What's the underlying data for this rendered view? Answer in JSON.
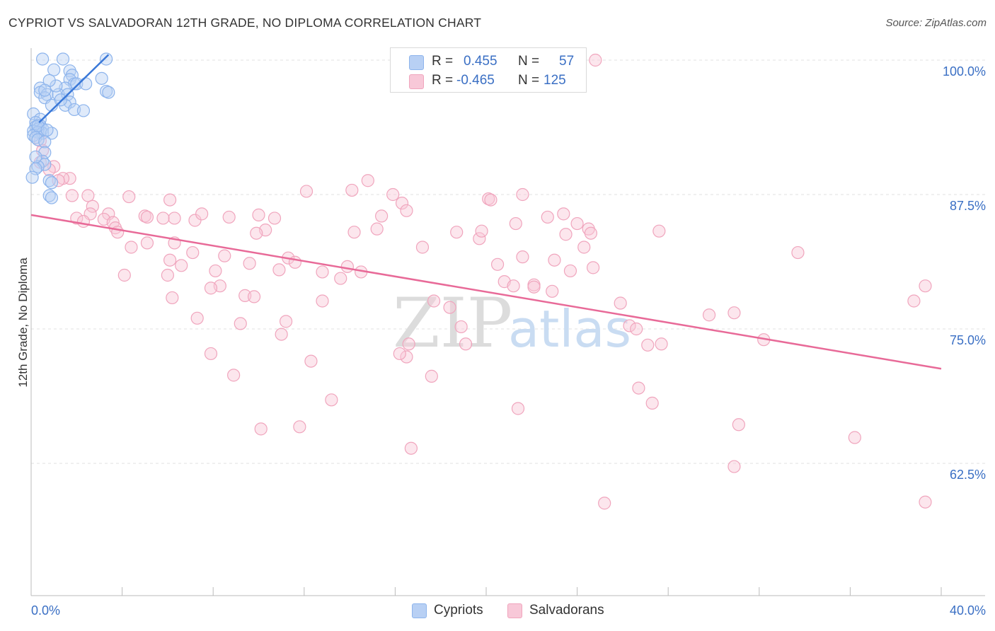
{
  "title": "CYPRIOT VS SALVADORAN 12TH GRADE, NO DIPLOMA CORRELATION CHART",
  "source": "Source: ZipAtlas.com",
  "watermark": {
    "zip": "ZIP",
    "atlas": "atlas"
  },
  "colors": {
    "blue": "#8db4ec",
    "blue_line": "#3a78d8",
    "blue_fill": "#b8d0f4",
    "pink": "#f0a5bd",
    "pink_line": "#e86a98",
    "pink_fill": "#f8c8d8",
    "tick_blue": "#3a6fc4",
    "grid": "#e2e2e2"
  },
  "legend": {
    "rows": [
      {
        "r_label": "R =",
        "r_value": "0.455",
        "n_label": "N =",
        "n_value": "57"
      },
      {
        "r_label": "R =",
        "r_value": "-0.465",
        "n_label": "N =",
        "n_value": "125"
      }
    ]
  },
  "bottom_legend": [
    "Cypriots",
    "Salvadorans"
  ],
  "chart_data": {
    "type": "scatter",
    "title": "CYPRIOT VS SALVADORAN 12TH GRADE, NO DIPLOMA CORRELATION CHART",
    "xlabel": "",
    "ylabel": "12th Grade, No Diploma",
    "xlim": [
      0,
      40
    ],
    "ylim": [
      50,
      100.5
    ],
    "x_tick_labels": [
      "0.0%",
      "40.0%"
    ],
    "y_ticks": [
      62.5,
      75.0,
      87.5,
      100.0
    ],
    "y_tick_labels": [
      "62.5%",
      "75.0%",
      "87.5%",
      "100.0%"
    ],
    "legend_position": "top-center",
    "series": [
      {
        "name": "Cypriots",
        "r": 0.455,
        "n": 57,
        "trend": {
          "x": [
            0.35,
            3.4
          ],
          "y": [
            94.2,
            100.5
          ]
        },
        "points": [
          [
            0.5,
            100.1
          ],
          [
            1.0,
            99.1
          ],
          [
            1.4,
            100.1
          ],
          [
            3.3,
            100.1
          ],
          [
            1.7,
            99.0
          ],
          [
            1.8,
            98.6
          ],
          [
            3.1,
            98.3
          ],
          [
            1.7,
            98.2
          ],
          [
            1.9,
            97.8
          ],
          [
            2.0,
            97.8
          ],
          [
            2.4,
            97.8
          ],
          [
            1.5,
            97.4
          ],
          [
            0.4,
            97.4
          ],
          [
            0.4,
            97.0
          ],
          [
            3.3,
            97.1
          ],
          [
            3.4,
            97.0
          ],
          [
            0.7,
            96.8
          ],
          [
            1.2,
            96.8
          ],
          [
            1.6,
            96.8
          ],
          [
            0.6,
            96.5
          ],
          [
            1.7,
            96.1
          ],
          [
            0.9,
            95.8
          ],
          [
            1.5,
            95.8
          ],
          [
            1.9,
            95.4
          ],
          [
            2.3,
            95.3
          ],
          [
            0.1,
            95.0
          ],
          [
            0.4,
            94.5
          ],
          [
            0.2,
            94.2
          ],
          [
            0.4,
            93.9
          ],
          [
            0.2,
            93.8
          ],
          [
            0.3,
            93.6
          ],
          [
            0.5,
            93.6
          ],
          [
            0.1,
            93.4
          ],
          [
            0.3,
            93.3
          ],
          [
            0.5,
            93.2
          ],
          [
            0.9,
            93.2
          ],
          [
            0.1,
            93.0
          ],
          [
            0.2,
            92.8
          ],
          [
            0.3,
            92.6
          ],
          [
            0.6,
            92.4
          ],
          [
            0.6,
            91.4
          ],
          [
            0.5,
            90.6
          ],
          [
            0.6,
            90.3
          ],
          [
            0.3,
            90.1
          ],
          [
            0.2,
            89.9
          ],
          [
            0.05,
            89.1
          ],
          [
            0.8,
            88.8
          ],
          [
            0.9,
            88.6
          ],
          [
            0.8,
            87.4
          ],
          [
            0.9,
            87.2
          ],
          [
            0.3,
            93.9
          ],
          [
            0.7,
            93.5
          ],
          [
            0.2,
            91.0
          ],
          [
            1.1,
            97.6
          ],
          [
            0.8,
            98.1
          ],
          [
            0.6,
            97.2
          ],
          [
            1.3,
            96.3
          ]
        ]
      },
      {
        "name": "Salvadorans",
        "r": -0.465,
        "n": 125,
        "trend": {
          "x": [
            0,
            40
          ],
          "y": [
            85.6,
            71.3
          ]
        },
        "points": [
          [
            24.8,
            100.0
          ],
          [
            0.3,
            93.3
          ],
          [
            0.4,
            92.5
          ],
          [
            0.5,
            91.6
          ],
          [
            0.4,
            90.5
          ],
          [
            1.0,
            90.1
          ],
          [
            0.8,
            89.8
          ],
          [
            1.7,
            89.0
          ],
          [
            1.4,
            89.0
          ],
          [
            1.2,
            88.8
          ],
          [
            1.8,
            87.4
          ],
          [
            2.5,
            87.4
          ],
          [
            4.3,
            87.3
          ],
          [
            2.7,
            86.4
          ],
          [
            3.4,
            85.7
          ],
          [
            2.6,
            85.7
          ],
          [
            5.0,
            85.5
          ],
          [
            5.1,
            85.4
          ],
          [
            6.3,
            85.3
          ],
          [
            5.8,
            85.3
          ],
          [
            3.2,
            85.2
          ],
          [
            2.0,
            85.3
          ],
          [
            2.3,
            85.0
          ],
          [
            3.6,
            84.9
          ],
          [
            3.7,
            84.4
          ],
          [
            3.8,
            84.0
          ],
          [
            4.4,
            82.6
          ],
          [
            5.1,
            83.0
          ],
          [
            6.3,
            83.0
          ],
          [
            7.1,
            82.1
          ],
          [
            6.6,
            80.9
          ],
          [
            6.1,
            81.4
          ],
          [
            4.1,
            80.0
          ],
          [
            6.0,
            80.0
          ],
          [
            7.2,
            85.1
          ],
          [
            6.1,
            87.0
          ],
          [
            8.7,
            85.4
          ],
          [
            7.5,
            85.7
          ],
          [
            8.5,
            81.8
          ],
          [
            8.1,
            80.4
          ],
          [
            9.6,
            81.1
          ],
          [
            8.3,
            79.0
          ],
          [
            7.9,
            78.8
          ],
          [
            9.4,
            78.1
          ],
          [
            9.8,
            78.0
          ],
          [
            6.2,
            77.9
          ],
          [
            7.3,
            76.0
          ],
          [
            9.2,
            75.5
          ],
          [
            11.2,
            75.7
          ],
          [
            11.0,
            74.5
          ],
          [
            7.9,
            72.7
          ],
          [
            8.9,
            70.7
          ],
          [
            10.1,
            65.7
          ],
          [
            11.8,
            65.9
          ],
          [
            12.3,
            72.0
          ],
          [
            13.2,
            68.4
          ],
          [
            12.8,
            80.3
          ],
          [
            12.8,
            77.6
          ],
          [
            11.3,
            81.6
          ],
          [
            10.9,
            80.5
          ],
          [
            11.6,
            81.2
          ],
          [
            10.3,
            84.2
          ],
          [
            10.7,
            85.3
          ],
          [
            10.0,
            85.6
          ],
          [
            9.9,
            83.9
          ],
          [
            12.1,
            87.8
          ],
          [
            14.1,
            87.9
          ],
          [
            14.2,
            84.0
          ],
          [
            14.8,
            88.8
          ],
          [
            13.6,
            79.7
          ],
          [
            13.9,
            80.8
          ],
          [
            14.5,
            80.3
          ],
          [
            15.2,
            84.3
          ],
          [
            15.4,
            85.5
          ],
          [
            15.9,
            87.5
          ],
          [
            16.3,
            86.7
          ],
          [
            16.5,
            86.0
          ],
          [
            17.2,
            82.6
          ],
          [
            17.7,
            77.6
          ],
          [
            18.4,
            77.0
          ],
          [
            18.7,
            84.0
          ],
          [
            19.7,
            83.4
          ],
          [
            19.8,
            84.1
          ],
          [
            18.9,
            75.2
          ],
          [
            19.1,
            73.6
          ],
          [
            17.6,
            70.6
          ],
          [
            16.6,
            73.6
          ],
          [
            16.5,
            72.4
          ],
          [
            16.2,
            72.7
          ],
          [
            16.7,
            63.9
          ],
          [
            20.1,
            87.1
          ],
          [
            20.2,
            87.0
          ],
          [
            20.5,
            81.0
          ],
          [
            20.8,
            79.4
          ],
          [
            21.2,
            79.0
          ],
          [
            21.3,
            84.8
          ],
          [
            21.6,
            87.5
          ],
          [
            21.6,
            81.7
          ],
          [
            22.1,
            79.1
          ],
          [
            22.1,
            78.9
          ],
          [
            22.7,
            85.4
          ],
          [
            22.9,
            78.5
          ],
          [
            21.4,
            67.6
          ],
          [
            23.0,
            81.4
          ],
          [
            23.4,
            85.7
          ],
          [
            23.5,
            83.8
          ],
          [
            23.7,
            80.4
          ],
          [
            24.0,
            84.8
          ],
          [
            24.5,
            84.3
          ],
          [
            24.6,
            83.9
          ],
          [
            24.7,
            80.7
          ],
          [
            24.3,
            82.6
          ],
          [
            25.9,
            77.4
          ],
          [
            26.3,
            75.3
          ],
          [
            26.6,
            75.0
          ],
          [
            26.7,
            69.5
          ],
          [
            27.1,
            73.5
          ],
          [
            27.3,
            68.1
          ],
          [
            27.6,
            84.1
          ],
          [
            27.7,
            73.6
          ],
          [
            29.8,
            76.3
          ],
          [
            30.9,
            76.5
          ],
          [
            30.9,
            62.2
          ],
          [
            31.1,
            66.1
          ],
          [
            32.2,
            74.0
          ],
          [
            33.7,
            82.1
          ],
          [
            36.2,
            64.9
          ],
          [
            38.8,
            77.6
          ],
          [
            39.3,
            79.0
          ],
          [
            39.3,
            58.9
          ],
          [
            25.2,
            58.8
          ]
        ]
      }
    ]
  }
}
